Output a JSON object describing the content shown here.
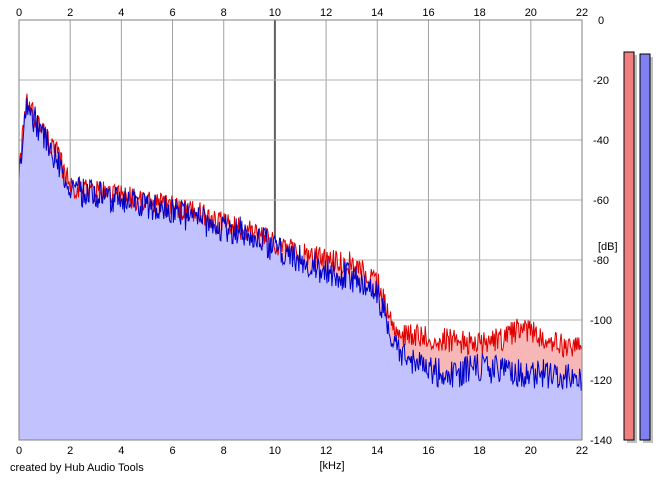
{
  "chart_data": {
    "type": "area",
    "xlabel": "[kHz]",
    "ylabel": "[dB]",
    "xlim": [
      0,
      22
    ],
    "ylim": [
      -140,
      0
    ],
    "x_ticks": [
      "0",
      "2",
      "4",
      "6",
      "8",
      "10",
      "12",
      "14",
      "16",
      "18",
      "20",
      "22"
    ],
    "y_ticks": [
      "0",
      "-20",
      "-40",
      "-60",
      "-80",
      "-100",
      "-120",
      "-140"
    ],
    "grid": true,
    "series": [
      {
        "color": "#e00000",
        "fill": "#f7b7b7",
        "points": [
          [
            0,
            -50
          ],
          [
            0.3,
            -28
          ],
          [
            0.6,
            -32
          ],
          [
            1,
            -38
          ],
          [
            1.5,
            -45
          ],
          [
            2,
            -55
          ],
          [
            3,
            -57
          ],
          [
            4,
            -58
          ],
          [
            5,
            -61
          ],
          [
            6,
            -62
          ],
          [
            7,
            -64
          ],
          [
            8,
            -68
          ],
          [
            9,
            -70
          ],
          [
            10,
            -75
          ],
          [
            11,
            -78
          ],
          [
            12,
            -80
          ],
          [
            13,
            -81
          ],
          [
            14,
            -87
          ],
          [
            14.5,
            -100
          ],
          [
            15,
            -105
          ],
          [
            16,
            -106
          ],
          [
            17,
            -107
          ],
          [
            18,
            -108
          ],
          [
            19,
            -106
          ],
          [
            19.5,
            -103
          ],
          [
            20,
            -104
          ],
          [
            21,
            -108
          ],
          [
            22,
            -109
          ]
        ]
      },
      {
        "color": "#0000c8",
        "fill": "#c2c2ff",
        "points": [
          [
            0,
            -50
          ],
          [
            0.3,
            -28
          ],
          [
            0.6,
            -33
          ],
          [
            1,
            -39
          ],
          [
            1.5,
            -47
          ],
          [
            2,
            -57
          ],
          [
            3,
            -58
          ],
          [
            4,
            -60
          ],
          [
            5,
            -62
          ],
          [
            6,
            -64
          ],
          [
            7,
            -67
          ],
          [
            8,
            -69
          ],
          [
            9,
            -71
          ],
          [
            10,
            -76
          ],
          [
            11,
            -80
          ],
          [
            12,
            -84
          ],
          [
            13,
            -86
          ],
          [
            14,
            -91
          ],
          [
            14.5,
            -103
          ],
          [
            15,
            -113
          ],
          [
            16,
            -117
          ],
          [
            17,
            -118
          ],
          [
            18,
            -116
          ],
          [
            19,
            -117
          ],
          [
            20,
            -118
          ],
          [
            21,
            -118
          ],
          [
            22,
            -119
          ]
        ]
      }
    ],
    "level_meters": [
      {
        "color": "#f08080",
        "level": 0.96
      },
      {
        "color": "#8080f0",
        "level": 0.955
      }
    ]
  },
  "footer": {
    "credit": "created by Hub Audio Tools"
  }
}
